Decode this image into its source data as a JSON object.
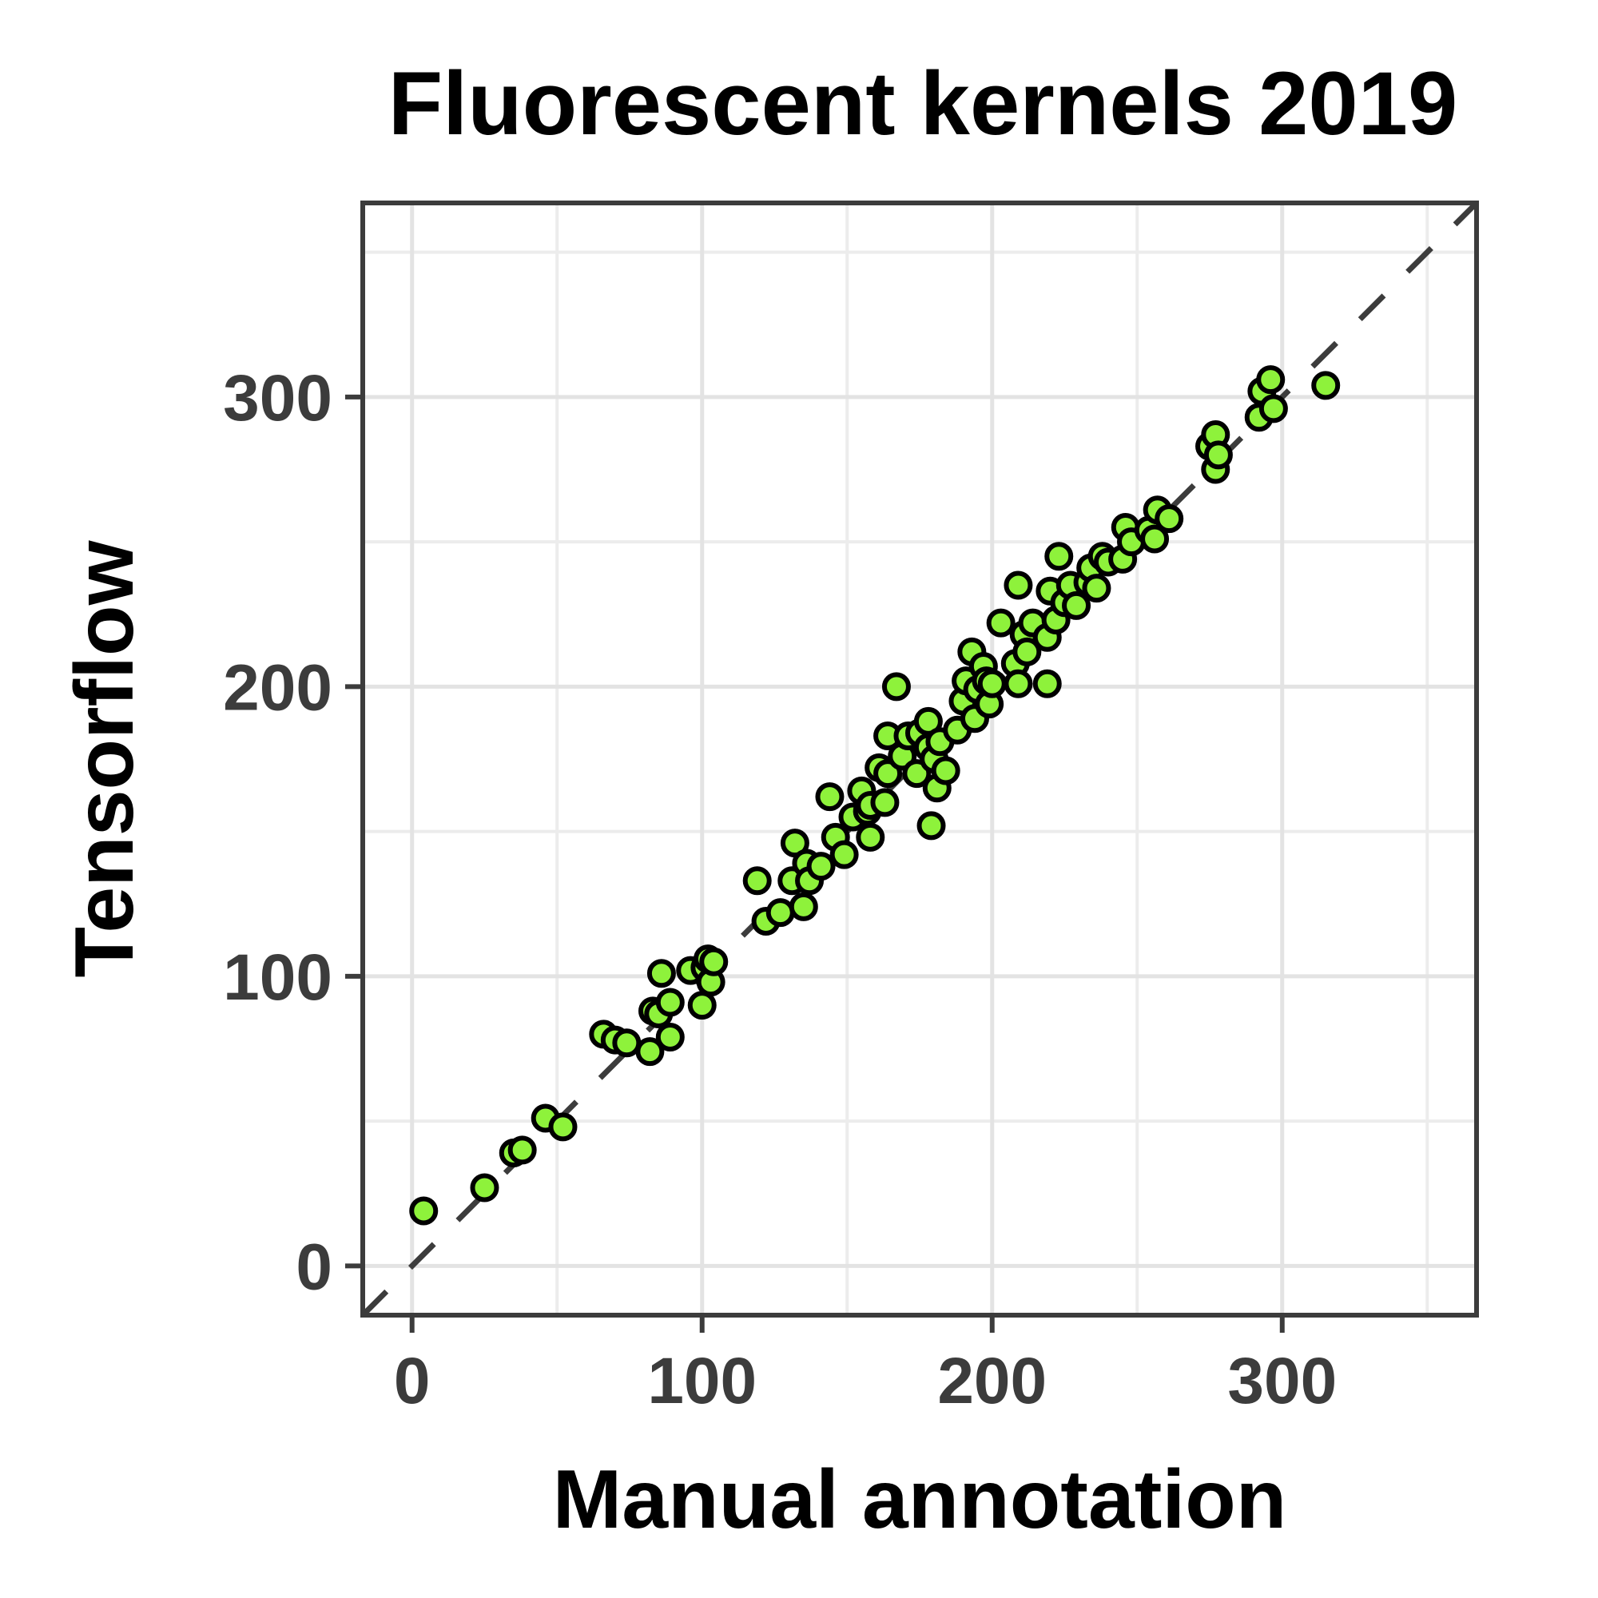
{
  "chart_data": {
    "type": "scatter",
    "title": "Fluorescent kernels 2019",
    "xlabel": "Manual annotation",
    "ylabel": "Tensorflow",
    "xlim": [
      -17,
      367
    ],
    "ylim": [
      -17,
      367
    ],
    "xticks": [
      0,
      100,
      200,
      300
    ],
    "yticks": [
      0,
      100,
      200,
      300
    ],
    "xtick_labels": [
      "0",
      "100",
      "200",
      "300"
    ],
    "ytick_labels": [
      "0",
      "100",
      "200",
      "300"
    ],
    "minor_ticks": [
      50,
      150,
      250,
      350
    ],
    "grid": true,
    "reference_line": "y = x (dashed)",
    "colors": {
      "point_fill": "#8ef23b",
      "point_stroke": "#000000",
      "frame": "#3c3c3c",
      "reference_line": "#3c3c3c"
    },
    "points": [
      [
        4,
        19
      ],
      [
        25,
        27
      ],
      [
        35,
        39
      ],
      [
        38,
        40
      ],
      [
        46,
        51
      ],
      [
        52,
        48
      ],
      [
        66,
        80
      ],
      [
        70,
        78
      ],
      [
        74,
        77
      ],
      [
        82,
        74
      ],
      [
        83,
        88
      ],
      [
        85,
        87
      ],
      [
        86,
        101
      ],
      [
        89,
        79
      ],
      [
        89,
        91
      ],
      [
        96,
        102
      ],
      [
        100,
        90
      ],
      [
        101,
        103
      ],
      [
        102,
        106
      ],
      [
        103,
        98
      ],
      [
        104,
        105
      ],
      [
        119,
        133
      ],
      [
        122,
        119
      ],
      [
        127,
        122
      ],
      [
        131,
        133
      ],
      [
        132,
        146
      ],
      [
        135,
        124
      ],
      [
        136,
        139
      ],
      [
        137,
        133
      ],
      [
        141,
        138
      ],
      [
        144,
        162
      ],
      [
        146,
        148
      ],
      [
        149,
        142
      ],
      [
        152,
        155
      ],
      [
        155,
        164
      ],
      [
        157,
        157
      ],
      [
        158,
        148
      ],
      [
        158,
        159
      ],
      [
        161,
        172
      ],
      [
        163,
        160
      ],
      [
        164,
        170
      ],
      [
        164,
        183
      ],
      [
        167,
        200
      ],
      [
        169,
        176
      ],
      [
        171,
        183
      ],
      [
        174,
        170
      ],
      [
        175,
        184
      ],
      [
        178,
        188
      ],
      [
        178,
        179
      ],
      [
        179,
        152
      ],
      [
        180,
        175
      ],
      [
        181,
        165
      ],
      [
        182,
        181
      ],
      [
        184,
        171
      ],
      [
        188,
        185
      ],
      [
        190,
        195
      ],
      [
        191,
        202
      ],
      [
        193,
        212
      ],
      [
        194,
        189
      ],
      [
        195,
        199
      ],
      [
        197,
        207
      ],
      [
        198,
        202
      ],
      [
        199,
        194
      ],
      [
        200,
        201
      ],
      [
        203,
        222
      ],
      [
        208,
        208
      ],
      [
        209,
        201
      ],
      [
        209,
        235
      ],
      [
        211,
        218
      ],
      [
        212,
        212
      ],
      [
        214,
        222
      ],
      [
        219,
        217
      ],
      [
        219,
        201
      ],
      [
        220,
        233
      ],
      [
        222,
        223
      ],
      [
        223,
        245
      ],
      [
        225,
        229
      ],
      [
        227,
        235
      ],
      [
        229,
        228
      ],
      [
        233,
        236
      ],
      [
        234,
        241
      ],
      [
        236,
        234
      ],
      [
        238,
        245
      ],
      [
        240,
        243
      ],
      [
        245,
        244
      ],
      [
        246,
        255
      ],
      [
        248,
        250
      ],
      [
        254,
        254
      ],
      [
        256,
        251
      ],
      [
        257,
        261
      ],
      [
        261,
        258
      ],
      [
        275,
        283
      ],
      [
        277,
        287
      ],
      [
        277,
        275
      ],
      [
        278,
        280
      ],
      [
        292,
        293
      ],
      [
        293,
        302
      ],
      [
        296,
        306
      ],
      [
        297,
        296
      ],
      [
        315,
        304
      ]
    ]
  }
}
